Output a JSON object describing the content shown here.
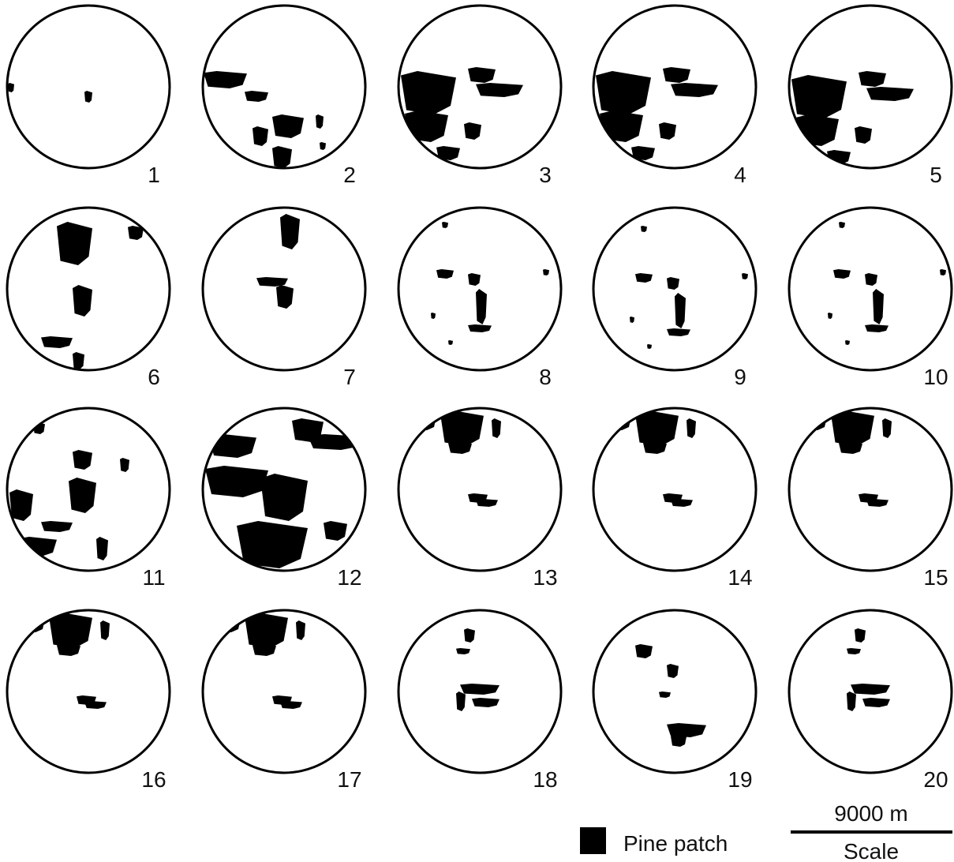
{
  "panels": [
    "1",
    "2",
    "3",
    "4",
    "5",
    "6",
    "7",
    "8",
    "9",
    "10",
    "11",
    "12",
    "13",
    "14",
    "15",
    "16",
    "17",
    "18",
    "19",
    "20"
  ],
  "legend": {
    "label": "Pine patch"
  },
  "scale": {
    "distance": "9000 m",
    "label": "Scale"
  }
}
